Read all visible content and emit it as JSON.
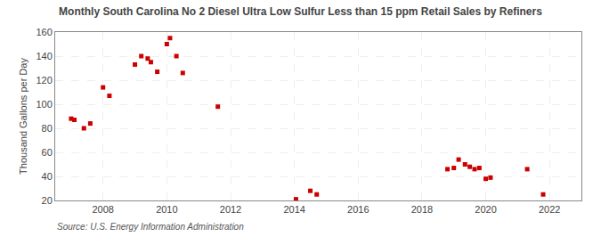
{
  "chart_data": {
    "type": "scatter",
    "title": "Monthly South Carolina No 2 Diesel Ultra Low Sulfur Less than 15 ppm Retail Sales by Refiners",
    "ylabel": "Thousand Gallons per Day",
    "annotations": [
      "Source: U.S. Energy Information Administration"
    ],
    "color": "#cc0000",
    "marker": "square",
    "grid": true,
    "xlim": [
      2006.5,
      2023.0
    ],
    "ylim": [
      20,
      160
    ],
    "xticks": [
      2008,
      2010,
      2012,
      2014,
      2016,
      2018,
      2020,
      2022
    ],
    "yticks": [
      20,
      40,
      60,
      80,
      100,
      120,
      140,
      160
    ],
    "x": [
      2007.0,
      2007.1,
      2007.4,
      2007.6,
      2008.0,
      2008.2,
      2009.0,
      2009.2,
      2009.4,
      2009.5,
      2009.7,
      2010.0,
      2010.1,
      2010.3,
      2010.5,
      2011.6,
      2014.05,
      2014.5,
      2014.7,
      2018.8,
      2019.0,
      2019.15,
      2019.35,
      2019.5,
      2019.65,
      2019.8,
      2020.0,
      2020.15,
      2021.3,
      2021.8
    ],
    "values": [
      88,
      87,
      80,
      84,
      114,
      107,
      133,
      140,
      138,
      135,
      127,
      150,
      155,
      140,
      126,
      98,
      21,
      28,
      25,
      46,
      47,
      54,
      50,
      48,
      46,
      47,
      38,
      39,
      46,
      25
    ]
  }
}
